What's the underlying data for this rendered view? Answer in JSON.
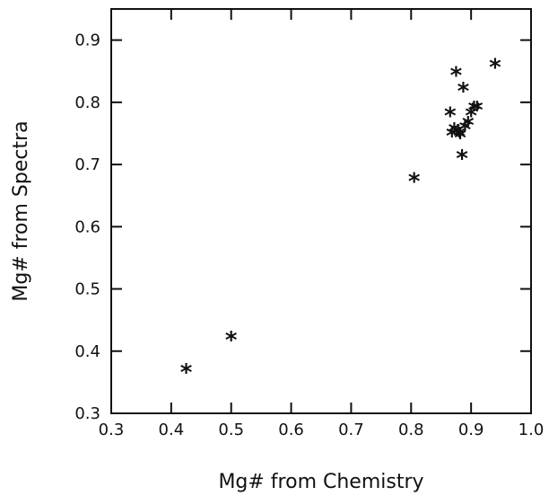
{
  "chart_data": {
    "type": "scatter",
    "title": "",
    "xlabel": "Mg# from Chemistry",
    "ylabel": "Mg# from Spectra",
    "xlim": [
      0.3,
      1.0
    ],
    "ylim": [
      0.3,
      0.95
    ],
    "xticks": [
      0.3,
      0.4,
      0.5,
      0.6,
      0.7,
      0.8,
      0.9,
      1.0
    ],
    "yticks": [
      0.3,
      0.4,
      0.5,
      0.6,
      0.7,
      0.8,
      0.9
    ],
    "xtick_labels": [
      "0.3",
      "0.4",
      "0.5",
      "0.6",
      "0.7",
      "0.8",
      "0.9",
      "1.0"
    ],
    "ytick_labels": [
      "0.3",
      "0.4",
      "0.5",
      "0.6",
      "0.7",
      "0.8",
      "0.9"
    ],
    "grid": false,
    "legend": "none",
    "marker_glyph": "*",
    "series": [
      {
        "x": [
          0.425,
          0.5,
          0.805,
          0.865,
          0.868,
          0.872,
          0.875,
          0.878,
          0.88,
          0.882,
          0.885,
          0.887,
          0.89,
          0.895,
          0.9,
          0.905,
          0.91,
          0.94
        ],
        "y": [
          0.368,
          0.42,
          0.675,
          0.78,
          0.748,
          0.755,
          0.845,
          0.752,
          0.748,
          0.745,
          0.712,
          0.82,
          0.758,
          0.765,
          0.78,
          0.79,
          0.79,
          0.858
        ]
      }
    ]
  }
}
